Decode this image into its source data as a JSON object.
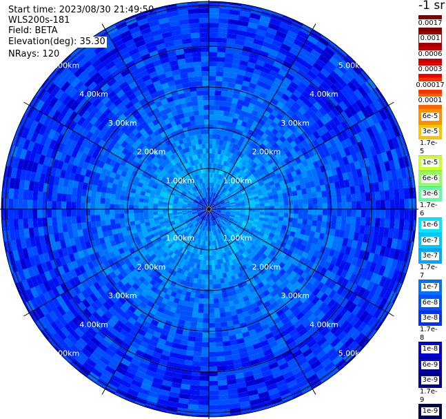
{
  "header": {
    "start_time": "Start time: 2023/08/30 21:49:50",
    "instrument": "WLS200s-181",
    "field": "Field: BETA",
    "elevation": "Elevation(deg): 35.30",
    "nrays": "NRays: 120"
  },
  "colorbar": {
    "units": "-1 sr",
    "labels": [
      "0.0017",
      "0.001",
      "0.0006",
      "0.0003",
      "0.00017",
      "0.0001",
      "6e-5",
      "3e-5",
      "1.7e-5",
      "1e-5",
      "6e-6",
      "3e-6",
      "1.7e-6",
      "1e-6",
      "6e-7",
      "3e-7",
      "1.7e-7",
      "1e-7",
      "6e-8",
      "3e-8",
      "1.7e-8",
      "1e-8",
      "6e-9",
      "3e-9",
      "1.7e-9",
      "1e-9"
    ],
    "colors": [
      "#7f0000",
      "#a00000",
      "#c80000",
      "#ee0000",
      "#ff3000",
      "#ff6000",
      "#ff9000",
      "#ffc000",
      "#f0f020",
      "#c8ff30",
      "#90ff60",
      "#60ffa0",
      "#30ffd0",
      "#00e8ff",
      "#00c8ff",
      "#00a8ff",
      "#0090ff",
      "#0070ff",
      "#0050ff",
      "#0030ff",
      "#0010ee",
      "#0000d0",
      "#0000b0",
      "#000090",
      "#000070",
      "#000050"
    ]
  },
  "chart_data": {
    "type": "heatmap",
    "projection": "polar-ppi",
    "field": "BETA",
    "nrays": 120,
    "range_rings_km": [
      1,
      2,
      3,
      4,
      5
    ],
    "range_labels": [
      "1.00km",
      "2.00km",
      "3.00km",
      "4.00km",
      "5.00km"
    ],
    "max_range_km": 5.1,
    "spoke_step_deg": 30,
    "color_scale": "log",
    "value_range": [
      1e-09,
      0.0017
    ],
    "profile_by_range": [
      {
        "range_km": 0.2,
        "value": 3e-08
      },
      {
        "range_km": 0.5,
        "value": 1.7e-07
      },
      {
        "range_km": 1.0,
        "value": 3e-07
      },
      {
        "range_km": 1.5,
        "value": 1.7e-07
      },
      {
        "range_km": 2.0,
        "value": 1e-07
      },
      {
        "range_km": 3.0,
        "value": 6e-08
      },
      {
        "range_km": 4.0,
        "value": 3e-08
      },
      {
        "range_km": 5.0,
        "value": 3e-08
      }
    ]
  }
}
